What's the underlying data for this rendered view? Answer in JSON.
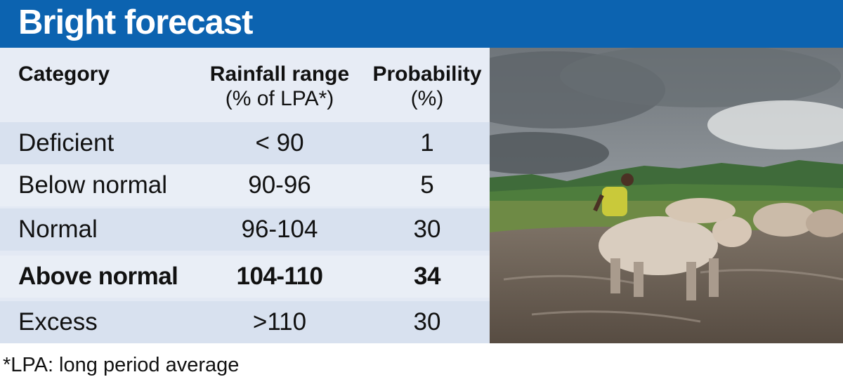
{
  "title": "Bright forecast",
  "table": {
    "headers": {
      "category": "Category",
      "range_line1": "Rainfall range",
      "range_line2": "(% of LPA*)",
      "prob_line1": "Probability",
      "prob_line2": "(%)"
    },
    "rows": [
      {
        "category": "Deficient",
        "range": "< 90",
        "probability": "1",
        "highlight": false
      },
      {
        "category": "Below normal",
        "range": "90-96",
        "probability": "5",
        "highlight": false
      },
      {
        "category": "Normal",
        "range": "96-104",
        "probability": "30",
        "highlight": false
      },
      {
        "category": "Above normal",
        "range": "104-110",
        "probability": "34",
        "highlight": true
      },
      {
        "category": "Excess",
        "range": ">110",
        "probability": "30",
        "highlight": false
      }
    ]
  },
  "footnote": "*LPA: long period average",
  "colors": {
    "title_bar": "#0c63b0",
    "header_bg": "#e7ecf5",
    "row_shade": "#d8e1ef",
    "row_plain": "#e9eef6"
  }
}
